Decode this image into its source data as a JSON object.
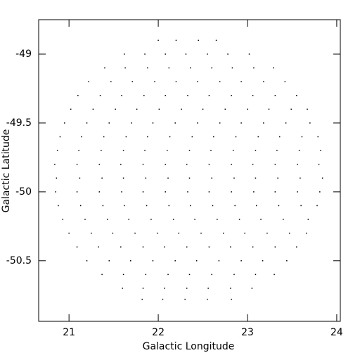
{
  "chart_data": {
    "type": "scatter",
    "xlabel": "Galactic Longitude",
    "ylabel": "Galactic Latitude",
    "xlim": [
      20.66,
      24.04
    ],
    "ylim": [
      -50.94,
      -48.75
    ],
    "xticks": [
      21,
      22,
      23,
      24
    ],
    "yticks": [
      -49,
      -49.5,
      -50,
      -50.5
    ],
    "color": "#000000",
    "x": [
      22.0,
      22.2,
      22.45,
      22.65,
      21.62,
      21.85,
      22.08,
      22.31,
      22.55,
      22.78,
      23.02,
      21.4,
      21.63,
      21.88,
      22.12,
      22.36,
      22.6,
      22.83,
      23.07,
      23.29,
      21.22,
      21.47,
      21.71,
      21.96,
      22.2,
      22.44,
      22.69,
      22.93,
      23.18,
      23.42,
      21.1,
      21.35,
      21.59,
      21.84,
      22.08,
      22.33,
      22.57,
      22.82,
      23.06,
      23.31,
      23.55,
      21.02,
      21.27,
      21.52,
      21.76,
      22.01,
      22.26,
      22.5,
      22.75,
      23.0,
      23.24,
      23.49,
      23.67,
      20.95,
      21.2,
      21.45,
      21.7,
      21.94,
      22.19,
      22.44,
      22.69,
      22.93,
      23.18,
      23.43,
      23.7,
      20.9,
      21.14,
      21.39,
      21.64,
      21.88,
      22.13,
      22.38,
      22.62,
      22.87,
      23.12,
      23.36,
      23.61,
      23.79,
      20.87,
      21.11,
      21.36,
      21.61,
      21.85,
      22.1,
      22.35,
      22.59,
      22.84,
      23.09,
      23.33,
      23.58,
      23.82,
      20.84,
      21.09,
      21.34,
      21.58,
      21.83,
      22.08,
      22.32,
      22.57,
      22.82,
      23.06,
      23.31,
      23.56,
      23.8,
      20.86,
      21.12,
      21.37,
      21.61,
      21.86,
      22.11,
      22.35,
      22.6,
      22.85,
      23.09,
      23.34,
      23.59,
      23.84,
      20.85,
      21.09,
      21.34,
      21.59,
      21.83,
      22.08,
      22.33,
      22.57,
      22.82,
      23.07,
      23.31,
      23.56,
      23.81,
      20.88,
      21.13,
      21.38,
      21.62,
      21.87,
      22.12,
      22.36,
      22.61,
      22.86,
      23.1,
      23.35,
      23.6,
      23.78,
      20.93,
      21.18,
      21.43,
      21.67,
      21.92,
      22.17,
      22.41,
      22.66,
      22.91,
      23.15,
      23.4,
      23.68,
      21.0,
      21.25,
      21.49,
      21.74,
      21.99,
      22.23,
      22.48,
      22.73,
      22.97,
      23.22,
      23.47,
      23.66,
      21.09,
      21.33,
      21.58,
      21.83,
      22.07,
      22.32,
      22.57,
      22.81,
      23.06,
      23.31,
      23.55,
      21.2,
      21.45,
      21.69,
      21.94,
      22.19,
      22.43,
      22.68,
      22.93,
      23.17,
      23.44,
      21.37,
      21.61,
      21.86,
      22.11,
      22.35,
      22.6,
      22.85,
      23.09,
      23.3,
      21.6,
      21.83,
      22.07,
      22.32,
      22.56,
      22.81,
      23.05,
      21.82,
      22.05,
      22.3,
      22.55,
      22.82
    ],
    "y": [
      -48.9,
      -48.9,
      -48.9,
      -48.9,
      -49.0,
      -49.0,
      -49.0,
      -49.0,
      -49.0,
      -49.0,
      -49.0,
      -49.1,
      -49.1,
      -49.1,
      -49.1,
      -49.1,
      -49.1,
      -49.1,
      -49.1,
      -49.1,
      -49.2,
      -49.2,
      -49.2,
      -49.2,
      -49.2,
      -49.2,
      -49.2,
      -49.2,
      -49.2,
      -49.2,
      -49.3,
      -49.3,
      -49.3,
      -49.3,
      -49.3,
      -49.3,
      -49.3,
      -49.3,
      -49.3,
      -49.3,
      -49.3,
      -49.4,
      -49.4,
      -49.4,
      -49.4,
      -49.4,
      -49.4,
      -49.4,
      -49.4,
      -49.4,
      -49.4,
      -49.4,
      -49.4,
      -49.5,
      -49.5,
      -49.5,
      -49.5,
      -49.5,
      -49.5,
      -49.5,
      -49.5,
      -49.5,
      -49.5,
      -49.5,
      -49.5,
      -49.6,
      -49.6,
      -49.6,
      -49.6,
      -49.6,
      -49.6,
      -49.6,
      -49.6,
      -49.6,
      -49.6,
      -49.6,
      -49.6,
      -49.6,
      -49.7,
      -49.7,
      -49.7,
      -49.7,
      -49.7,
      -49.7,
      -49.7,
      -49.7,
      -49.7,
      -49.7,
      -49.7,
      -49.7,
      -49.7,
      -49.8,
      -49.8,
      -49.8,
      -49.8,
      -49.8,
      -49.8,
      -49.8,
      -49.8,
      -49.8,
      -49.8,
      -49.8,
      -49.8,
      -49.8,
      -49.9,
      -49.9,
      -49.9,
      -49.9,
      -49.9,
      -49.9,
      -49.9,
      -49.9,
      -49.9,
      -49.9,
      -49.9,
      -49.9,
      -49.9,
      -50.0,
      -50.0,
      -50.0,
      -50.0,
      -50.0,
      -50.0,
      -50.0,
      -50.0,
      -50.0,
      -50.0,
      -50.0,
      -50.0,
      -50.0,
      -50.1,
      -50.1,
      -50.1,
      -50.1,
      -50.1,
      -50.1,
      -50.1,
      -50.1,
      -50.1,
      -50.1,
      -50.1,
      -50.1,
      -50.1,
      -50.2,
      -50.2,
      -50.2,
      -50.2,
      -50.2,
      -50.2,
      -50.2,
      -50.2,
      -50.2,
      -50.2,
      -50.2,
      -50.2,
      -50.3,
      -50.3,
      -50.3,
      -50.3,
      -50.3,
      -50.3,
      -50.3,
      -50.3,
      -50.3,
      -50.3,
      -50.3,
      -50.3,
      -50.4,
      -50.4,
      -50.4,
      -50.4,
      -50.4,
      -50.4,
      -50.4,
      -50.4,
      -50.4,
      -50.4,
      -50.4,
      -50.5,
      -50.5,
      -50.5,
      -50.5,
      -50.5,
      -50.5,
      -50.5,
      -50.5,
      -50.5,
      -50.5,
      -50.6,
      -50.6,
      -50.6,
      -50.6,
      -50.6,
      -50.6,
      -50.6,
      -50.6,
      -50.6,
      -50.7,
      -50.7,
      -50.7,
      -50.7,
      -50.7,
      -50.7,
      -50.7,
      -50.78,
      -50.78,
      -50.78,
      -50.78,
      -50.78
    ]
  }
}
